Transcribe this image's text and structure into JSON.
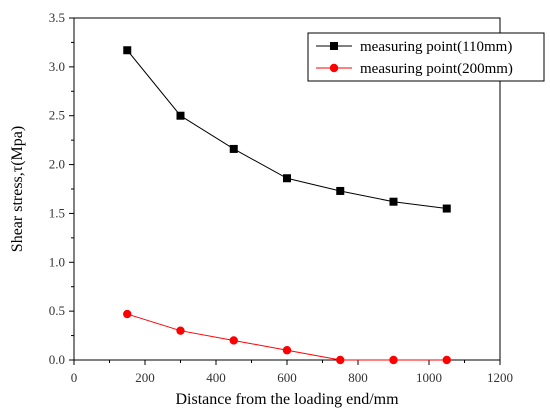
{
  "chart_data": {
    "type": "line",
    "title": "",
    "xlabel": "Distance from the loading end/mm",
    "ylabel": "Shear stress,τ(Mpa)",
    "xlim": [
      0,
      1200
    ],
    "ylim": [
      0,
      3.5
    ],
    "x_ticks": [
      "0",
      "200",
      "400",
      "600",
      "800",
      "1000",
      "1200"
    ],
    "y_ticks": [
      "0.0",
      "0.5",
      "1.0",
      "1.5",
      "2.0",
      "2.5",
      "3.0",
      "3.5"
    ],
    "grid": false,
    "legend_position": "top-right",
    "x": [
      150,
      300,
      450,
      600,
      750,
      900,
      1050
    ],
    "series": [
      {
        "name": "measuring point(110mm)",
        "values": [
          3.17,
          2.5,
          2.16,
          1.86,
          1.73,
          1.62,
          1.55
        ],
        "color": "#000000",
        "marker": "square"
      },
      {
        "name": "measuring point(200mm)",
        "values": [
          0.47,
          0.3,
          0.2,
          0.1,
          0.0,
          0.0,
          0.0
        ],
        "color": "#ff0000",
        "marker": "circle"
      }
    ]
  }
}
